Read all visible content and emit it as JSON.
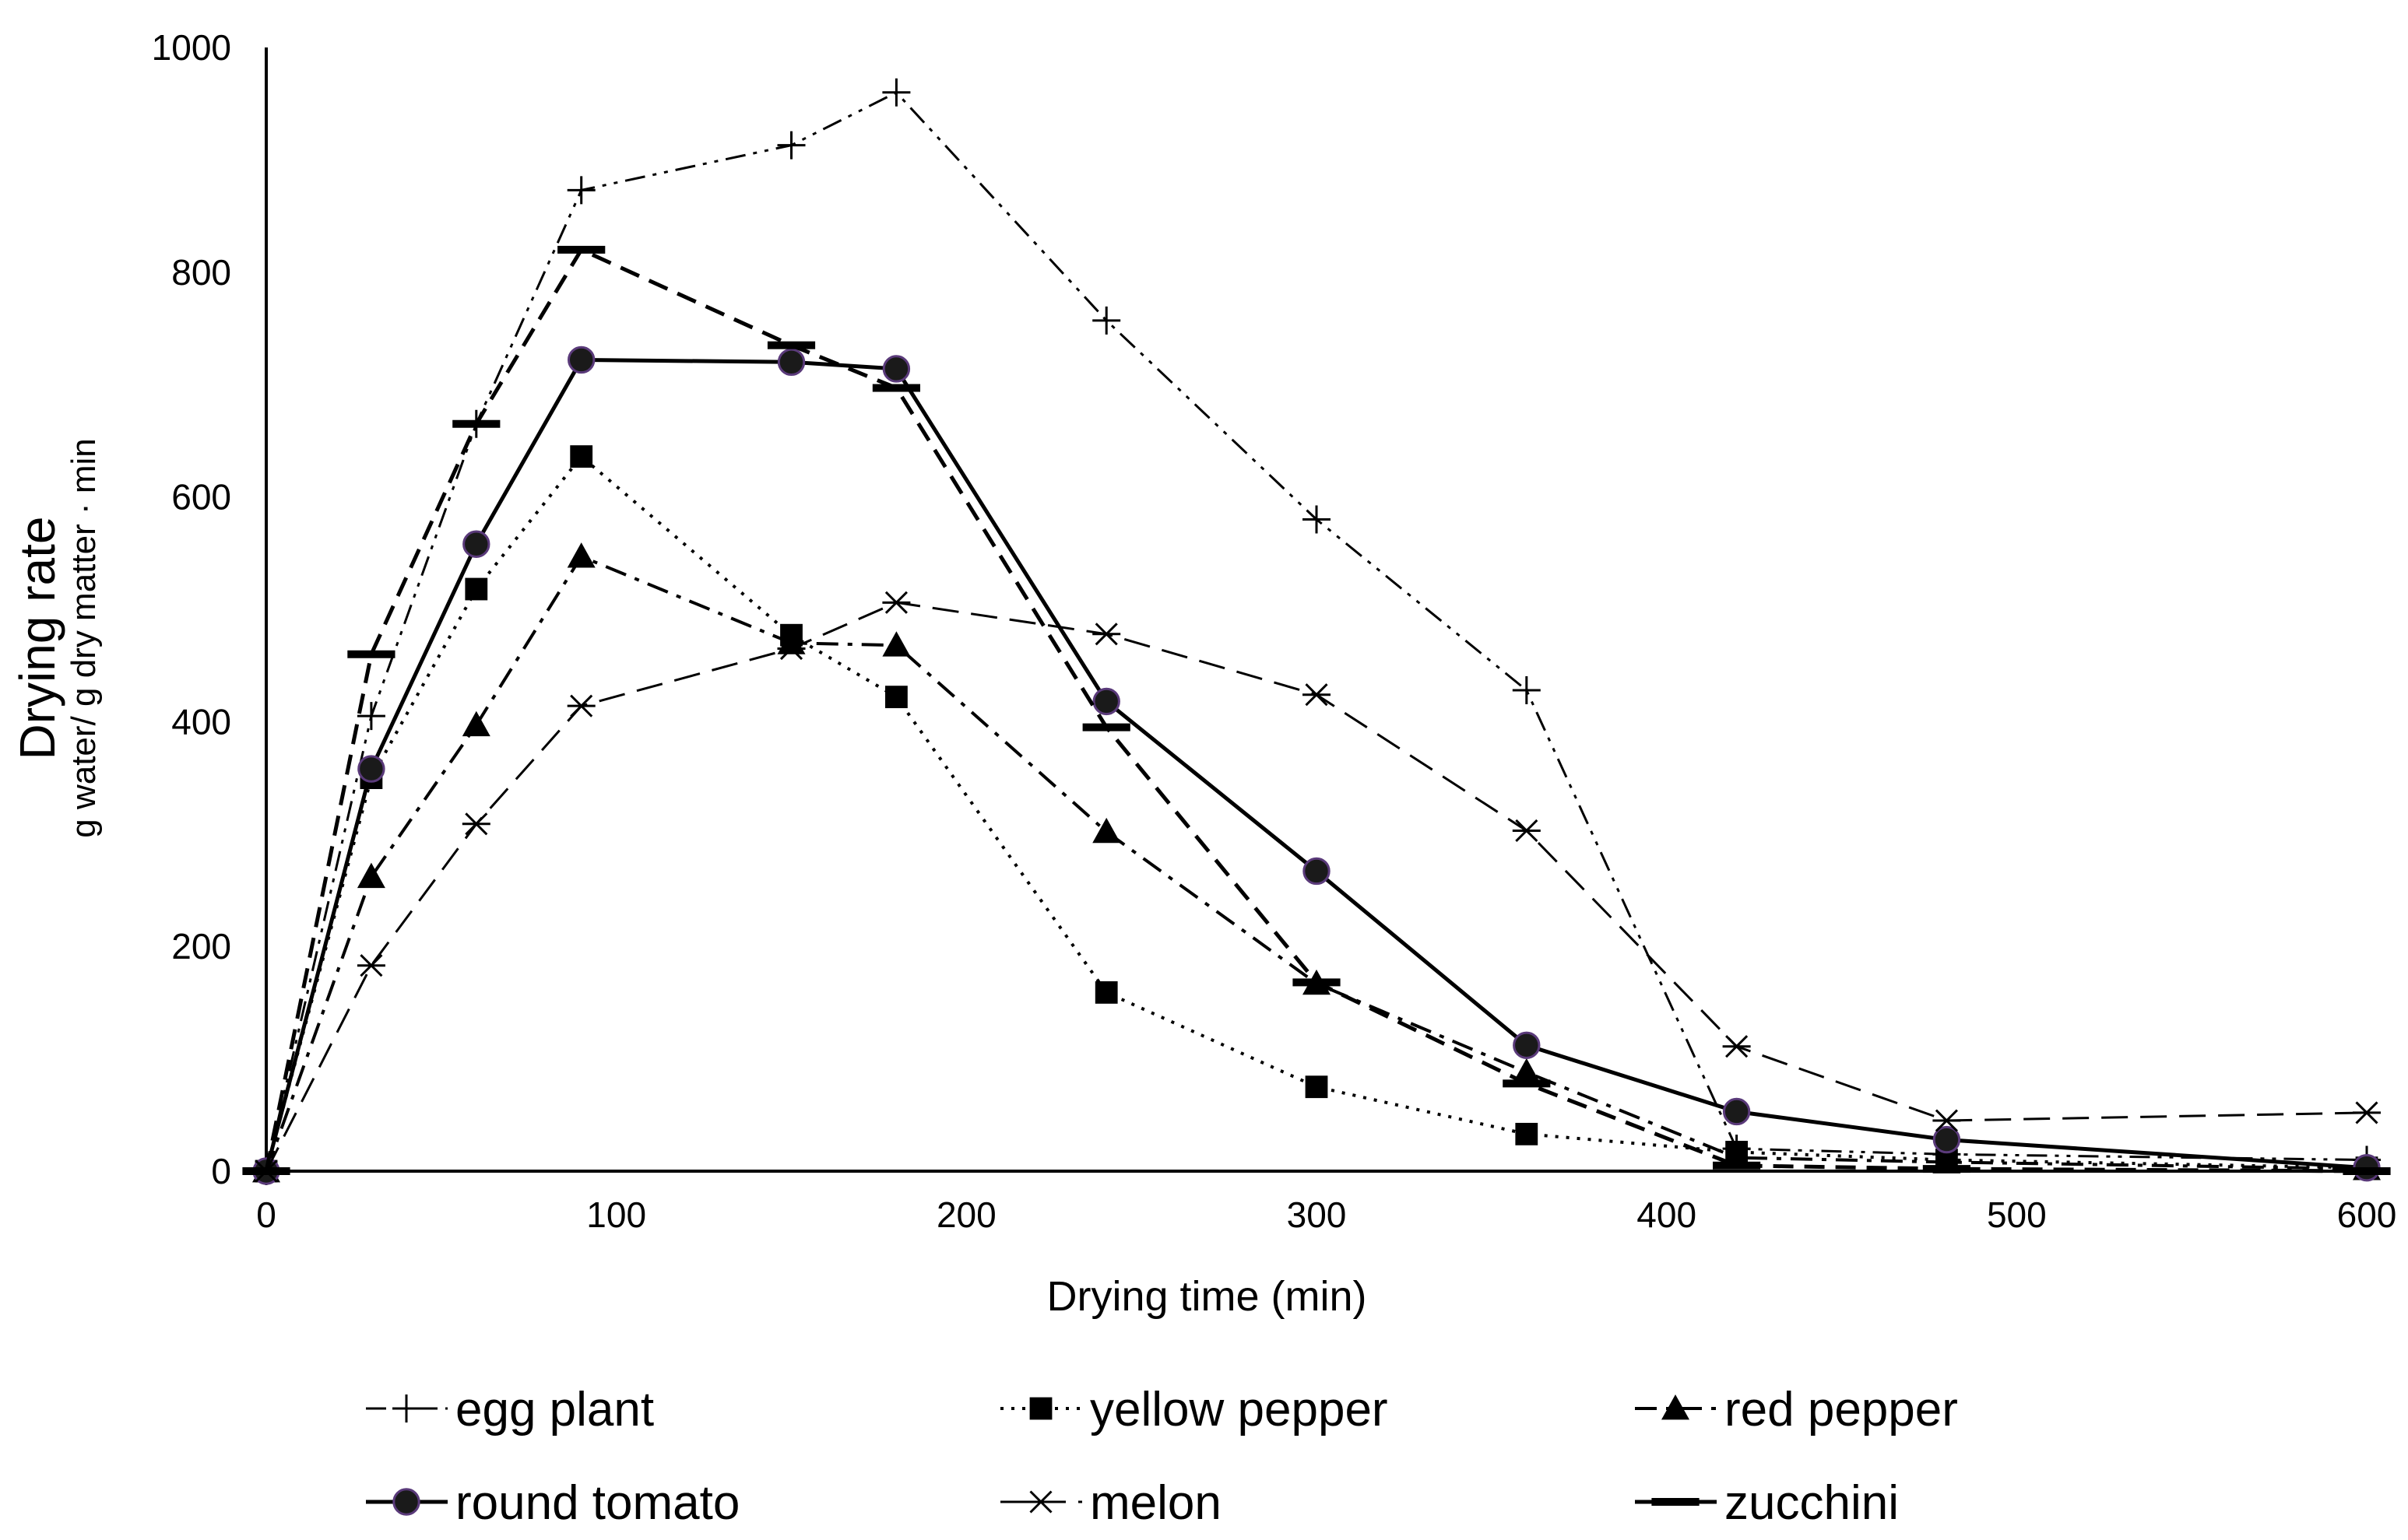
{
  "chart_data": {
    "type": "line",
    "title": "",
    "xlabel": "Drying time (min)",
    "ylabel": "Drying rate",
    "ylabel_sub": "g water/ g dry matter · min",
    "xlim": [
      0,
      600
    ],
    "ylim": [
      0,
      1000
    ],
    "xticks": [
      0,
      100,
      200,
      300,
      400,
      500,
      600
    ],
    "yticks": [
      0,
      200,
      400,
      600,
      800,
      1000
    ],
    "grid": false,
    "legend_position": "bottom",
    "series": [
      {
        "name": "egg plant",
        "marker": "plus",
        "dash": "dashdotdot",
        "x": [
          0,
          30,
          60,
          90,
          150,
          180,
          240,
          300,
          360,
          420,
          480,
          600
        ],
        "y": [
          0,
          405,
          665,
          873,
          913,
          960,
          757,
          580,
          428,
          20,
          15,
          10
        ]
      },
      {
        "name": "yellow pepper",
        "marker": "square",
        "dash": "dotted",
        "x": [
          0,
          30,
          60,
          90,
          150,
          180,
          240,
          300,
          360,
          420,
          480,
          600
        ],
        "y": [
          0,
          350,
          518,
          636,
          477,
          422,
          159,
          75,
          33,
          17,
          10,
          3
        ]
      },
      {
        "name": "red pepper",
        "marker": "triangle",
        "dash": "dashdot",
        "x": [
          0,
          30,
          60,
          90,
          150,
          180,
          240,
          300,
          360,
          420,
          480,
          600
        ],
        "y": [
          0,
          262,
          397,
          547,
          470,
          468,
          302,
          167,
          88,
          12,
          8,
          2
        ]
      },
      {
        "name": "round tomato",
        "marker": "circle",
        "dash": "solid",
        "x": [
          0,
          30,
          60,
          90,
          150,
          180,
          240,
          300,
          360,
          420,
          480,
          600
        ],
        "y": [
          0,
          358,
          558,
          722,
          720,
          714,
          418,
          267,
          112,
          53,
          28,
          3
        ]
      },
      {
        "name": "melon",
        "marker": "asterisk",
        "dash": "longdash",
        "x": [
          0,
          30,
          60,
          90,
          150,
          180,
          240,
          300,
          360,
          420,
          480,
          600
        ],
        "y": [
          0,
          183,
          309,
          414,
          465,
          506,
          478,
          424,
          303,
          111,
          45,
          52
        ]
      },
      {
        "name": "zucchini",
        "marker": "bar",
        "dash": "dashed",
        "x": [
          0,
          30,
          60,
          90,
          150,
          180,
          240,
          300,
          360,
          420,
          480,
          600
        ],
        "y": [
          0,
          460,
          665,
          820,
          735,
          697,
          395,
          168,
          78,
          5,
          2,
          0
        ]
      }
    ]
  }
}
